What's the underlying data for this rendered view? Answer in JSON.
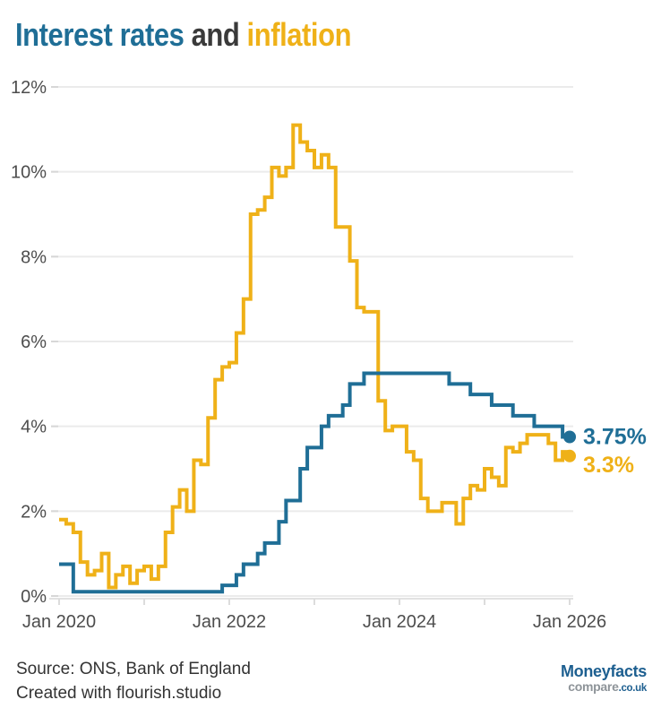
{
  "title": {
    "interest": "Interest rates",
    "and": " and ",
    "inflation": "inflation"
  },
  "colors": {
    "interest_line": "#1f6e96",
    "inflation_line": "#efb118",
    "title_and": "#3a3a3a",
    "grid": "#ebebeb",
    "axis": "#e2e2e2",
    "tick_text": "#4d4d4d",
    "footer_text": "#333333",
    "logo_blue": "#1d5f90",
    "logo_gray": "#8e9499",
    "background": "#ffffff"
  },
  "chart_data": {
    "type": "line",
    "subtype": "step",
    "title": "Interest rates and inflation",
    "xlabel": "",
    "ylabel": "",
    "x_start_month": "Jan 2020",
    "x_end_month": "Jan 2026",
    "months_per_point": 1,
    "x_tick_labels": [
      "Jan 2020",
      "Jan 2022",
      "Jan 2024",
      "Jan 2026"
    ],
    "x_minor_tick_years": [
      2020,
      2021,
      2022,
      2023,
      2024,
      2025,
      2026
    ],
    "y_tick_labels": [
      "0%",
      "2%",
      "4%",
      "6%",
      "8%",
      "10%",
      "12%"
    ],
    "ylim": [
      0,
      12
    ],
    "grid": "horizontal-only",
    "legend": "none (series named by colored title words)",
    "series": [
      {
        "name": "Interest rates",
        "color": "#1f6e96",
        "end_label": "3.75%",
        "end_value": 3.75,
        "values": [
          0.75,
          0.75,
          0.1,
          0.1,
          0.1,
          0.1,
          0.1,
          0.1,
          0.1,
          0.1,
          0.1,
          0.1,
          0.1,
          0.1,
          0.1,
          0.1,
          0.1,
          0.1,
          0.1,
          0.1,
          0.1,
          0.1,
          0.1,
          0.25,
          0.25,
          0.5,
          0.75,
          0.75,
          1.0,
          1.25,
          1.25,
          1.75,
          2.25,
          2.25,
          3.0,
          3.5,
          3.5,
          4.0,
          4.25,
          4.25,
          4.5,
          5.0,
          5.0,
          5.25,
          5.25,
          5.25,
          5.25,
          5.25,
          5.25,
          5.25,
          5.25,
          5.25,
          5.25,
          5.25,
          5.25,
          5.0,
          5.0,
          5.0,
          4.75,
          4.75,
          4.75,
          4.5,
          4.5,
          4.5,
          4.25,
          4.25,
          4.25,
          4.0,
          4.0,
          4.0,
          4.0,
          3.75,
          3.75
        ]
      },
      {
        "name": "Inflation",
        "color": "#efb118",
        "end_label": "3.3%",
        "end_value": 3.3,
        "values": [
          1.8,
          1.7,
          1.5,
          0.8,
          0.5,
          0.6,
          1.0,
          0.2,
          0.5,
          0.7,
          0.3,
          0.6,
          0.7,
          0.4,
          0.7,
          1.5,
          2.1,
          2.5,
          2.0,
          3.2,
          3.1,
          4.2,
          5.1,
          5.4,
          5.5,
          6.2,
          7.0,
          9.0,
          9.1,
          9.4,
          10.1,
          9.9,
          10.1,
          11.1,
          10.7,
          10.5,
          10.1,
          10.4,
          10.1,
          8.7,
          8.7,
          7.9,
          6.8,
          6.7,
          6.7,
          4.6,
          3.9,
          4.0,
          4.0,
          3.4,
          3.2,
          2.3,
          2.0,
          2.0,
          2.2,
          2.2,
          1.7,
          2.3,
          2.6,
          2.5,
          3.0,
          2.8,
          2.6,
          3.5,
          3.4,
          3.6,
          3.8,
          3.8,
          3.8,
          3.6,
          3.2,
          3.4,
          3.3
        ]
      }
    ]
  },
  "footer": {
    "source": "Source: ONS, Bank of England",
    "credit": "Created with flourish.studio"
  },
  "logo": {
    "name": "Moneyfacts",
    "compare": "compare",
    "couk": ".co.uk"
  }
}
